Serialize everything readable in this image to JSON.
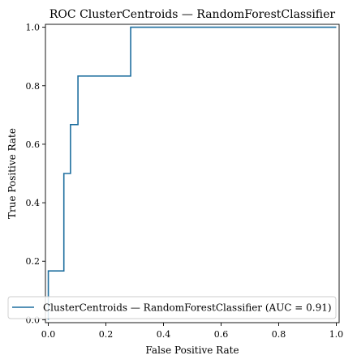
{
  "chart_data": {
    "type": "line",
    "title": "ROC ClusterCentroids — RandomForestClassifier",
    "xlabel": "False Positive Rate",
    "ylabel": "True Positive Rate",
    "xlim": [
      -0.01,
      1.01
    ],
    "ylim": [
      -0.01,
      1.01
    ],
    "xticks": [
      "0.0",
      "0.2",
      "0.4",
      "0.6",
      "0.8",
      "1.0"
    ],
    "yticks": [
      "0.0",
      "0.2",
      "0.4",
      "0.6",
      "0.8",
      "1.0"
    ],
    "grid": false,
    "legend_position": "lower-right",
    "series": [
      {
        "name": "ClusterCentroids — RandomForestClassifier (AUC = 0.91)",
        "color": "#1f6f9f",
        "x": [
          0.0,
          0.0,
          0.0,
          0.054,
          0.054,
          0.077,
          0.077,
          0.103,
          0.103,
          0.286,
          0.286,
          1.0
        ],
        "y": [
          0.0,
          0.083,
          0.167,
          0.167,
          0.5,
          0.5,
          0.667,
          0.667,
          0.833,
          0.833,
          1.0,
          1.0
        ]
      }
    ]
  }
}
